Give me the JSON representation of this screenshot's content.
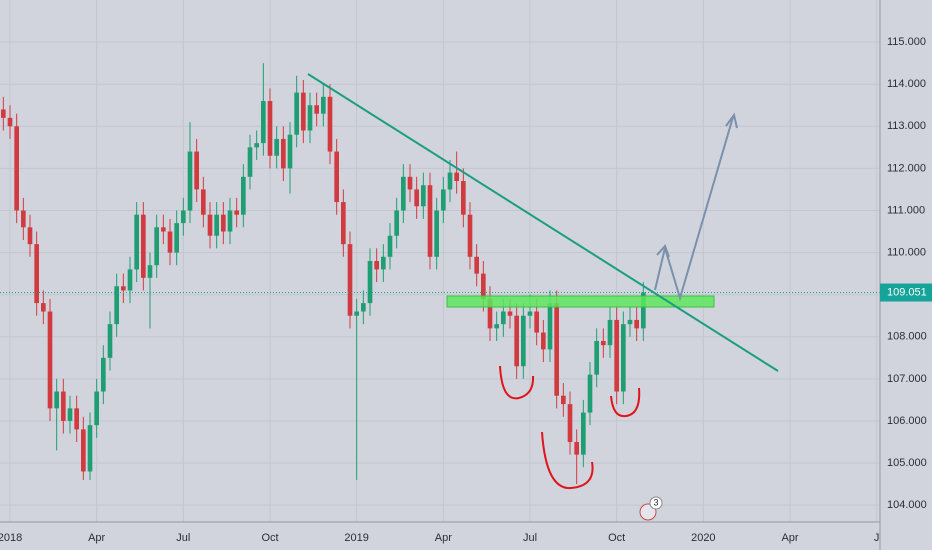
{
  "chart_data": {
    "type": "candlestick",
    "categories": [
      null,
      "2018",
      null,
      null,
      null,
      null,
      null,
      null,
      null,
      null,
      null,
      null,
      null,
      null,
      "Apr",
      null,
      null,
      null,
      null,
      null,
      null,
      null,
      null,
      null,
      null,
      null,
      null,
      "Jul",
      null,
      null,
      null,
      null,
      null,
      null,
      null,
      null,
      null,
      null,
      null,
      null,
      "Oct",
      null,
      null,
      null,
      null,
      null,
      null,
      null,
      null,
      null,
      null,
      null,
      null,
      "2019",
      null,
      null,
      null,
      null,
      null,
      null,
      null,
      null,
      null,
      null,
      null,
      null,
      "Apr",
      null,
      null,
      null,
      null,
      null,
      null,
      null,
      null,
      null,
      null,
      null,
      null,
      "Jul",
      null,
      null,
      null,
      null,
      null,
      null,
      null,
      null,
      null,
      null,
      null,
      null,
      "Oct",
      null,
      null,
      null,
      null,
      null,
      null,
      null,
      null,
      null,
      null,
      null,
      null,
      "2020",
      null,
      null,
      null,
      null,
      null,
      null,
      null,
      null,
      null,
      null,
      null,
      null,
      "Apr",
      null,
      null,
      null,
      null,
      null,
      null,
      null,
      null,
      null,
      null,
      null,
      null,
      "J"
    ],
    "open": [
      113.4,
      113.2,
      113.0,
      111.0,
      110.6,
      110.2,
      108.8,
      108.6,
      106.3,
      106.7,
      106.0,
      106.3,
      105.8,
      104.8,
      105.9,
      106.7,
      107.5,
      108.3,
      109.2,
      109.1,
      109.6,
      110.9,
      109.4,
      109.7,
      110.6,
      110.5,
      110.0,
      110.7,
      111.0,
      112.4,
      111.5,
      110.9,
      110.4,
      110.9,
      110.5,
      111.0,
      110.9,
      111.8,
      112.5,
      112.6,
      113.6,
      112.3,
      112.7,
      112.0,
      112.8,
      113.8,
      112.9,
      113.5,
      113.3,
      113.7,
      112.4,
      111.2,
      110.2,
      108.5,
      108.6,
      108.8,
      109.8,
      109.6,
      109.9,
      110.4,
      111.0,
      111.8,
      111.5,
      111.1,
      111.6,
      109.9,
      111.0,
      111.5,
      111.9,
      111.7,
      110.9,
      109.9,
      109.5,
      108.9,
      108.2,
      108.3,
      108.6,
      108.5,
      107.3,
      108.5,
      108.6,
      108.1,
      107.7,
      108.8,
      106.6,
      106.4,
      105.5,
      105.2,
      106.2,
      107.1,
      107.9,
      107.8,
      108.4,
      106.7,
      108.3,
      108.4,
      108.2,
      null,
      null,
      null,
      null,
      null,
      null,
      null,
      null,
      null,
      null,
      null,
      null,
      null,
      null,
      null,
      null,
      null,
      null,
      null,
      null,
      null,
      null,
      null,
      null,
      null,
      null,
      null,
      null,
      null,
      null,
      null,
      null,
      null,
      null,
      null
    ],
    "high": [
      113.7,
      113.5,
      113.3,
      111.3,
      110.9,
      110.5,
      109.1,
      108.9,
      107.0,
      107.0,
      106.6,
      106.6,
      106.1,
      106.2,
      107.0,
      107.8,
      108.6,
      109.5,
      109.5,
      109.9,
      111.2,
      111.2,
      110.0,
      110.9,
      110.9,
      110.8,
      111.0,
      111.3,
      113.1,
      112.7,
      111.8,
      111.2,
      111.2,
      111.2,
      111.3,
      111.3,
      112.1,
      112.8,
      112.9,
      114.5,
      113.9,
      113.0,
      113.0,
      113.1,
      114.2,
      114.1,
      113.8,
      113.8,
      114.0,
      114.0,
      112.7,
      111.5,
      110.5,
      108.9,
      109.1,
      110.1,
      110.1,
      110.2,
      110.7,
      111.3,
      112.1,
      112.1,
      111.8,
      111.9,
      111.9,
      111.3,
      111.8,
      112.2,
      112.4,
      112.0,
      111.2,
      110.2,
      109.8,
      109.2,
      108.6,
      108.9,
      108.9,
      108.8,
      108.8,
      109.0,
      108.9,
      108.4,
      109.1,
      109.1,
      106.9,
      106.7,
      105.8,
      106.5,
      107.4,
      108.2,
      108.2,
      108.7,
      108.7,
      108.6,
      108.7,
      108.7,
      109.3,
      null,
      null,
      null,
      null,
      null,
      null,
      null,
      null,
      null,
      null,
      null,
      null,
      null,
      null,
      null,
      null,
      null,
      null,
      null,
      null,
      null,
      null,
      null,
      null,
      null,
      null,
      null,
      null,
      null,
      null,
      null,
      null,
      null,
      null,
      null
    ],
    "low": [
      112.9,
      112.7,
      110.7,
      110.3,
      109.9,
      108.5,
      108.3,
      106.0,
      105.3,
      105.7,
      105.7,
      105.5,
      104.6,
      104.6,
      105.6,
      106.4,
      107.2,
      108.0,
      108.8,
      108.8,
      109.3,
      109.1,
      108.2,
      109.4,
      110.2,
      109.7,
      109.7,
      110.4,
      110.7,
      111.2,
      110.6,
      110.1,
      110.1,
      110.2,
      110.2,
      110.6,
      110.6,
      111.5,
      112.2,
      112.3,
      112.0,
      112.0,
      111.7,
      111.4,
      112.5,
      112.6,
      112.6,
      113.0,
      113.0,
      112.1,
      110.9,
      109.9,
      108.2,
      104.6,
      108.3,
      108.5,
      109.3,
      109.3,
      109.6,
      110.1,
      110.7,
      111.2,
      110.8,
      110.8,
      109.6,
      109.6,
      110.7,
      111.2,
      111.4,
      110.6,
      109.6,
      109.2,
      108.6,
      107.9,
      107.9,
      108.0,
      108.2,
      107.0,
      107.0,
      108.2,
      107.8,
      107.4,
      107.4,
      106.3,
      106.1,
      105.2,
      104.5,
      104.9,
      105.9,
      106.8,
      107.5,
      107.5,
      106.4,
      106.4,
      108.0,
      107.9,
      107.9,
      null,
      null,
      null,
      null,
      null,
      null,
      null,
      null,
      null,
      null,
      null,
      null,
      null,
      null,
      null,
      null,
      null,
      null,
      null,
      null,
      null,
      null,
      null,
      null,
      null,
      null,
      null,
      null,
      null,
      null,
      null,
      null,
      null,
      null,
      null
    ],
    "close": [
      113.2,
      113.0,
      111.0,
      110.6,
      110.2,
      108.8,
      108.6,
      106.3,
      106.7,
      106.0,
      106.3,
      105.8,
      104.8,
      105.9,
      106.7,
      107.5,
      108.3,
      109.2,
      109.1,
      109.6,
      110.9,
      109.4,
      109.7,
      110.6,
      110.5,
      110.0,
      110.7,
      111.0,
      112.4,
      111.5,
      110.9,
      110.4,
      110.9,
      110.5,
      111.0,
      110.9,
      111.8,
      112.5,
      112.6,
      113.6,
      112.3,
      112.7,
      112.0,
      112.8,
      113.8,
      112.9,
      113.5,
      113.3,
      113.7,
      112.4,
      111.2,
      110.2,
      108.5,
      108.6,
      108.8,
      109.8,
      109.6,
      109.9,
      110.4,
      111.0,
      111.8,
      111.5,
      111.1,
      111.6,
      109.9,
      111.0,
      111.5,
      111.9,
      111.7,
      110.9,
      109.9,
      109.5,
      108.9,
      108.2,
      108.3,
      108.6,
      108.5,
      107.3,
      108.5,
      108.6,
      108.1,
      107.7,
      108.8,
      106.6,
      106.4,
      105.5,
      105.2,
      106.2,
      107.1,
      107.9,
      107.8,
      108.4,
      106.7,
      108.3,
      108.4,
      108.2,
      109.051,
      null,
      null,
      null,
      null,
      null,
      null,
      null,
      null,
      null,
      null,
      null,
      null,
      null,
      null,
      null,
      null,
      null,
      null,
      null,
      null,
      null,
      null,
      null,
      null,
      null,
      null,
      null,
      null,
      null,
      null,
      null,
      null,
      null,
      null,
      null
    ],
    "up_color": "#1f9e74",
    "down_color": "#d13b40",
    "price_line_color": "#15a39a",
    "ylim": [
      103.6,
      116
    ],
    "yticks": [
      {
        "value": 104,
        "label": "104.000"
      },
      {
        "value": 105,
        "label": "105.000"
      },
      {
        "value": 106,
        "label": "106.000"
      },
      {
        "value": 107,
        "label": "107.000"
      },
      {
        "value": 108,
        "label": "108.000"
      },
      {
        "value": 109,
        "label": "109.000"
      },
      {
        "value": 110,
        "label": "110.000"
      },
      {
        "value": 111,
        "label": "111.000"
      },
      {
        "value": 112,
        "label": "112.000"
      },
      {
        "value": 113,
        "label": "113.000"
      },
      {
        "value": 114,
        "label": "114.000"
      },
      {
        "value": 115,
        "label": "115.000"
      }
    ],
    "grid": true,
    "annotation": "3"
  }
}
